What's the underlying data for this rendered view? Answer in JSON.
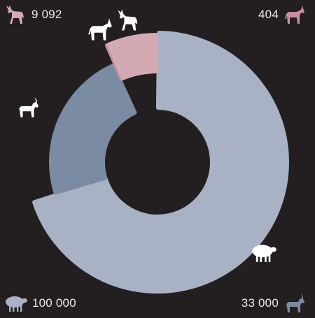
{
  "colors": {
    "background": "#231f20",
    "sheep": "#a8b2c4",
    "goat": "#7b8ba3",
    "donkey": "#d3a9b3",
    "horse": "#c78f9f",
    "text": "#ece9e6",
    "white_icon": "#ffffff"
  },
  "corners": {
    "top_left": {
      "icon": "donkey-icon",
      "value": "9 092"
    },
    "top_right": {
      "icon": "horse-icon",
      "value": "404"
    },
    "bottom_left": {
      "icon": "sheep-icon",
      "value": "100 000"
    },
    "bottom_right": {
      "icon": "goat-icon",
      "value": "33 000"
    }
  },
  "chart_data": {
    "type": "pie",
    "variant": "donut",
    "start_angle_deg": 0,
    "direction": "clockwise",
    "slices": [
      {
        "key": "sheep",
        "value": 100000,
        "color": "#a8b2c4",
        "icon": "sheep-icon"
      },
      {
        "key": "goat",
        "value": 33000,
        "color": "#7b8ba3",
        "icon": "goat-icon"
      },
      {
        "key": "horse",
        "value": 404,
        "color": "#c78f9f",
        "icon": "horse-icon"
      },
      {
        "key": "donkey",
        "value": 9092,
        "color": "#d3a9b3",
        "icon": "donkey-icon"
      }
    ]
  }
}
